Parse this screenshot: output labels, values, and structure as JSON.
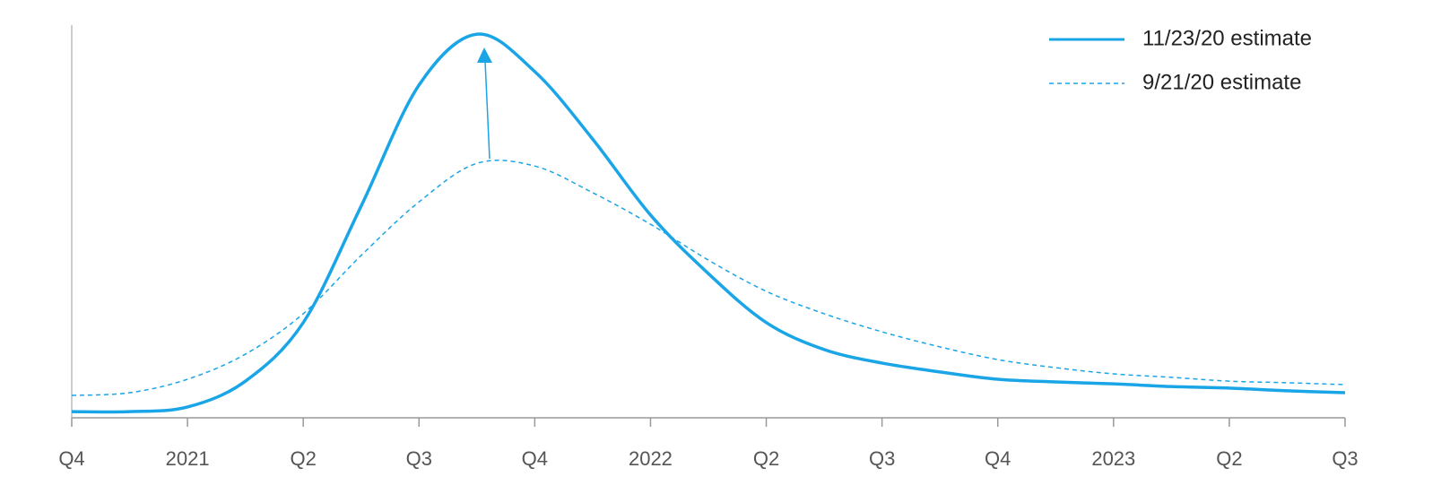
{
  "chart_data": {
    "type": "line",
    "x": [
      0,
      0.5,
      1,
      1.5,
      2,
      2.5,
      3,
      3.5,
      4,
      4.5,
      5,
      5.5,
      6,
      6.5,
      7,
      7.5,
      8,
      8.5,
      9,
      9.5,
      10,
      10.5,
      11
    ],
    "series": [
      {
        "name": "11/23/20 estimate",
        "color": "#1aa5e6",
        "line_style": "solid",
        "values": [
          1.6,
          1.6,
          2.8,
          9.5,
          24.7,
          54.9,
          86.3,
          99.5,
          89.8,
          72.3,
          52.6,
          37.4,
          24.7,
          17.7,
          14.2,
          11.9,
          10.0,
          9.3,
          8.8,
          8.1,
          7.7,
          7.0,
          6.5
        ]
      },
      {
        "name": "9/21/20 estimate",
        "color": "#1aa5e6",
        "line_style": "dashed",
        "values": [
          5.8,
          6.5,
          10.0,
          16.5,
          27.0,
          42.1,
          56.0,
          66.0,
          65.3,
          58.4,
          50.2,
          40.9,
          32.8,
          27.0,
          22.3,
          18.4,
          15.1,
          13.0,
          11.4,
          10.5,
          9.5,
          9.1,
          8.6
        ]
      }
    ],
    "xlim": [
      0,
      11
    ],
    "xticks": [
      {
        "value": 0,
        "label": "Q4"
      },
      {
        "value": 1,
        "label": "2021"
      },
      {
        "value": 2,
        "label": "Q2"
      },
      {
        "value": 3,
        "label": "Q3"
      },
      {
        "value": 4,
        "label": "Q4"
      },
      {
        "value": 5,
        "label": "2022"
      },
      {
        "value": 6,
        "label": "Q2"
      },
      {
        "value": 7,
        "label": "Q3"
      },
      {
        "value": 8,
        "label": "Q4"
      },
      {
        "value": 9,
        "label": "2023"
      },
      {
        "value": 10,
        "label": "Q2"
      },
      {
        "value": 11,
        "label": "Q3"
      }
    ],
    "ylim": [
      0,
      100
    ],
    "grid": false,
    "legend_position": "top-right"
  }
}
